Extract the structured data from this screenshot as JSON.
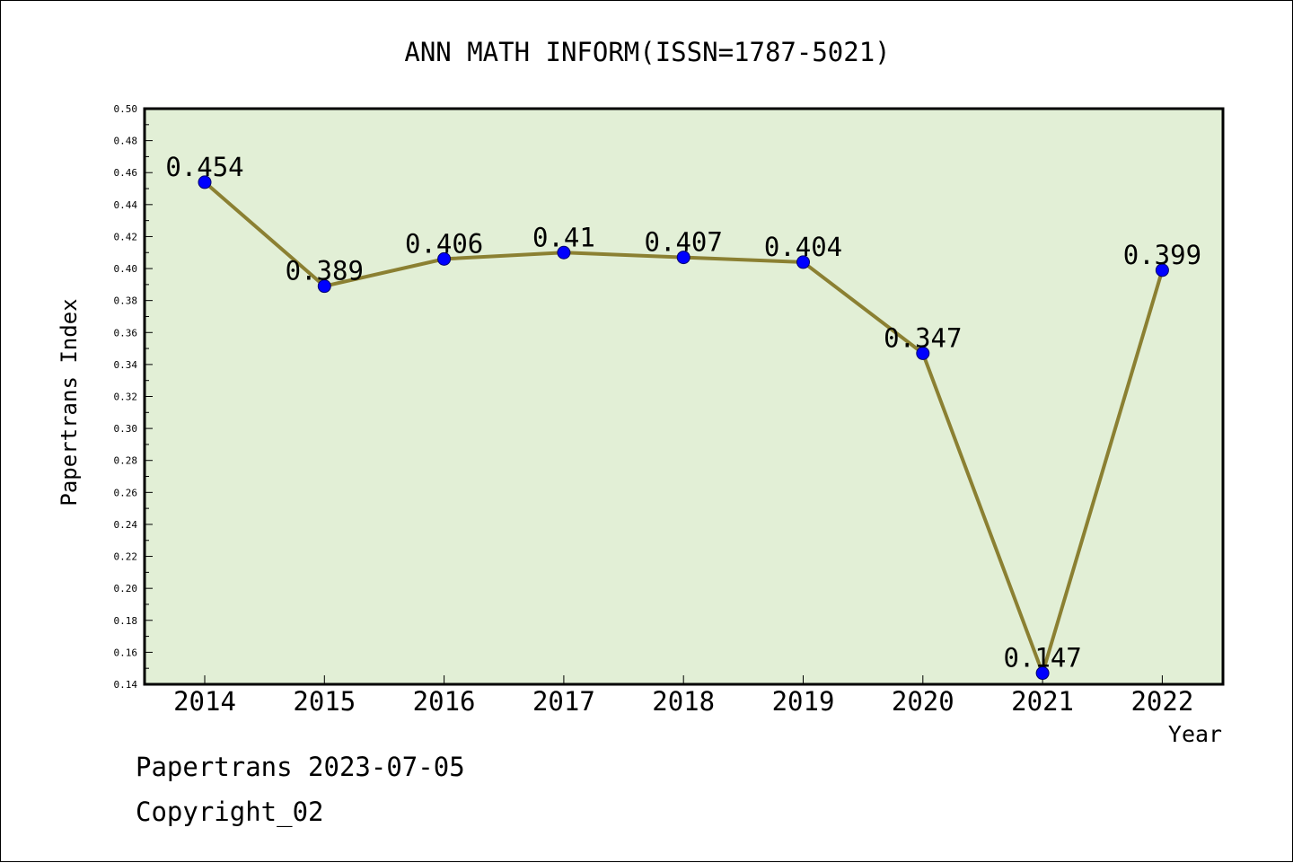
{
  "chart_data": {
    "type": "line",
    "title": "ANN MATH INFORM(ISSN=1787-5021)",
    "xlabel": "Year",
    "ylabel": "Papertrans Index",
    "categories": [
      "2014",
      "2015",
      "2016",
      "2017",
      "2018",
      "2019",
      "2020",
      "2021",
      "2022"
    ],
    "values": [
      0.454,
      0.389,
      0.406,
      0.41,
      0.407,
      0.404,
      0.347,
      0.147,
      0.399
    ],
    "data_labels": [
      "0.454",
      "0.389",
      "0.406",
      "0.41",
      "0.407",
      "0.404",
      "0.347",
      "0.147",
      "0.399"
    ],
    "ylim": [
      0.14,
      0.5
    ],
    "yticks": [
      "0.14",
      "0.16",
      "0.18",
      "0.20",
      "0.22",
      "0.24",
      "0.26",
      "0.28",
      "0.30",
      "0.32",
      "0.34",
      "0.36",
      "0.38",
      "0.40",
      "0.42",
      "0.44",
      "0.46",
      "0.48",
      "0.50"
    ],
    "grid": false,
    "legend": "none",
    "colors": {
      "plot_background": "#e2efd6",
      "line": "#8b8032",
      "marker": "#0000ff",
      "marker_edge": "#00006b"
    }
  },
  "footer": {
    "source": "Papertrans 2023-07-05",
    "copyright": "Copyright_02"
  }
}
